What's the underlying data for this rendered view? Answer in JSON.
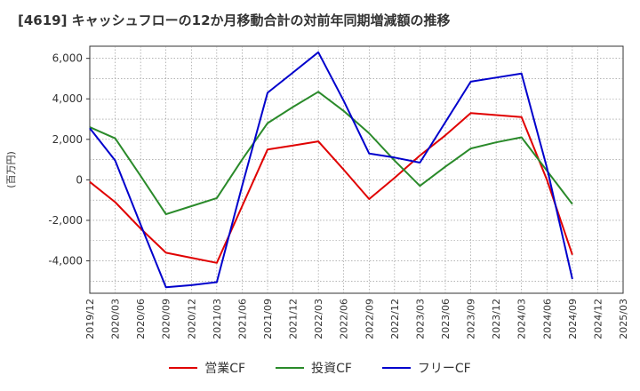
{
  "title": "[4619]  キャッシュフローの12か月移動合計の対前年同期増減額の推移",
  "chart_data": {
    "type": "line",
    "ylabel": "(百万円)",
    "ylim": [
      -5600,
      6600
    ],
    "yticks": [
      -4000,
      -2000,
      0,
      2000,
      4000,
      6000
    ],
    "ytick_labels": [
      "-4,000",
      "-2,000",
      "0",
      "2,000",
      "4,000",
      "6,000"
    ],
    "grid": true,
    "legend_position": "bottom",
    "x_labels": [
      "2019/12",
      "2020/03",
      "2020/06",
      "2020/09",
      "2020/12",
      "2021/03",
      "2021/06",
      "2021/09",
      "2021/12",
      "2022/03",
      "2022/06",
      "2022/09",
      "2022/12",
      "2023/03",
      "2023/06",
      "2023/09",
      "2023/12",
      "2024/03",
      "2024/06",
      "2024/09",
      "2024/12",
      "2025/03"
    ],
    "series": [
      {
        "name": "営業CF",
        "color": "#e00000",
        "values": [
          -100,
          -1100,
          -2400,
          -3600,
          -3850,
          -4100,
          -1300,
          1500,
          1700,
          1900,
          500,
          -950,
          100,
          1200,
          2200,
          3300,
          3200,
          3100,
          0,
          -3700,
          null,
          null
        ]
      },
      {
        "name": "投資CF",
        "color": "#2a8a2a",
        "values": [
          2600,
          2050,
          200,
          -1700,
          -1300,
          -900,
          1000,
          2800,
          3600,
          4350,
          3400,
          2300,
          950,
          -300,
          650,
          1550,
          1850,
          2100,
          450,
          -1200,
          null,
          null
        ]
      },
      {
        "name": "フリーCF",
        "color": "#0000cc",
        "values": [
          2550,
          950,
          -2200,
          -5300,
          -5200,
          -5050,
          -300,
          4300,
          5300,
          6300,
          3900,
          1300,
          1100,
          850,
          2850,
          4850,
          5050,
          5250,
          600,
          -4900,
          null,
          null
        ]
      }
    ]
  }
}
